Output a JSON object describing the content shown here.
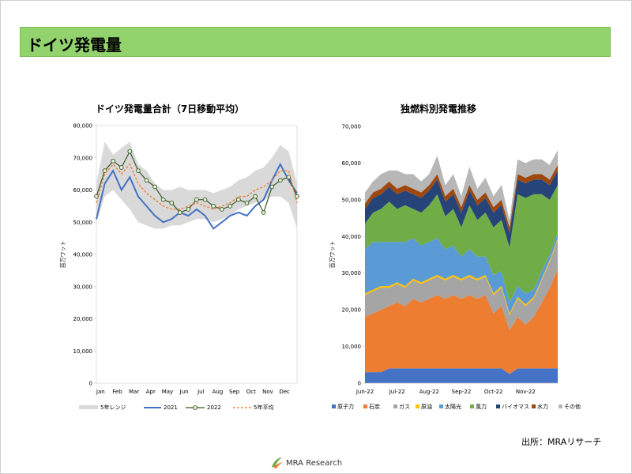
{
  "header": {
    "title": "ドイツ発電量"
  },
  "footer": {
    "source": "出所：MRAリサーチ",
    "logo_text": "MRA Research"
  },
  "colors": {
    "banner": "#92d36e",
    "range": "#d9d9d9",
    "y2021": "#4472c4",
    "y2022_line": "#385723",
    "y2022_marker": "#e2efda",
    "avg": "#ed7d31"
  },
  "chart_data": [
    {
      "type": "line",
      "title": "ドイツ発電量合計（7日移動平均）",
      "ylabel": "百万ワット",
      "ylim": [
        0,
        80000
      ],
      "yticks": [
        0,
        10000,
        20000,
        30000,
        40000,
        50000,
        60000,
        70000,
        80000
      ],
      "ytick_labels": [
        "0",
        "10,000",
        "20,000",
        "30,000",
        "40,000",
        "50,000",
        "60,000",
        "70,000",
        "80,000"
      ],
      "months": [
        "Jan",
        "Feb",
        "Mar",
        "Apr",
        "May",
        "Jun",
        "Jul",
        "Aug",
        "Sep",
        "Oct",
        "Nov",
        "Dec"
      ],
      "legend": [
        "5年レンジ",
        "2021",
        "2022",
        "5年平均"
      ],
      "legend_position": "bottom",
      "x": [
        0,
        0.5,
        1,
        1.5,
        2,
        2.5,
        3,
        3.5,
        4,
        4.5,
        5,
        5.5,
        6,
        6.5,
        7,
        7.5,
        8,
        8.5,
        9,
        9.5,
        10,
        10.5,
        11,
        11.5,
        12
      ],
      "series": [
        {
          "name": "5年レンジ",
          "kind": "band",
          "low": [
            50000,
            58000,
            60000,
            57000,
            54000,
            50000,
            49000,
            48000,
            48000,
            49000,
            49000,
            50000,
            51000,
            51000,
            50000,
            51000,
            52000,
            54000,
            55000,
            56000,
            57000,
            58000,
            58000,
            56000,
            48000
          ],
          "high": [
            62000,
            75000,
            71000,
            73000,
            75000,
            68000,
            66000,
            62000,
            60000,
            60000,
            61000,
            60000,
            60000,
            60000,
            59000,
            60000,
            61000,
            63000,
            64000,
            66000,
            67000,
            70000,
            74000,
            72000,
            62000
          ]
        },
        {
          "name": "2021",
          "values": [
            51000,
            62000,
            66000,
            60000,
            64000,
            58000,
            55000,
            52000,
            50000,
            51000,
            53000,
            52000,
            54000,
            52000,
            48000,
            50000,
            52000,
            53000,
            52000,
            55000,
            57000,
            63000,
            68000,
            63000,
            59000
          ]
        },
        {
          "name": "2022",
          "values": [
            58000,
            66000,
            69000,
            67000,
            72000,
            66000,
            63000,
            61000,
            57000,
            56000,
            53000,
            54000,
            57000,
            57000,
            55000,
            54000,
            55000,
            57000,
            56000,
            58000,
            53000,
            61000,
            63000,
            64000,
            58000
          ]
        },
        {
          "name": "5年平均",
          "values": [
            56000,
            65000,
            68000,
            65000,
            68000,
            62000,
            59000,
            57000,
            55000,
            54000,
            54000,
            55000,
            56000,
            55000,
            54000,
            55000,
            56000,
            58000,
            58000,
            60000,
            61000,
            63000,
            66000,
            66000,
            56000
          ]
        }
      ]
    },
    {
      "type": "area",
      "stacked": true,
      "title": "独燃料別発電推移",
      "ylabel": "百万ワット",
      "ylim": [
        0,
        70000
      ],
      "yticks": [
        0,
        10000,
        20000,
        30000,
        40000,
        50000,
        60000,
        70000
      ],
      "ytick_labels": [
        "0",
        "10,000",
        "20,000",
        "30,000",
        "40,000",
        "50,000",
        "60,000",
        "70,000"
      ],
      "categories": [
        "Jun-22",
        "Jul-22",
        "Aug-22",
        "Sep-22",
        "Oct-22",
        "Nov-22"
      ],
      "legend": [
        "原子力",
        "石炭",
        "ガス",
        "原油",
        "太陽光",
        "風力",
        "バイオマス",
        "水力",
        "その他"
      ],
      "legend_position": "bottom",
      "x": [
        0,
        0.25,
        0.5,
        0.75,
        1,
        1.25,
        1.5,
        1.75,
        2,
        2.25,
        2.5,
        2.75,
        3,
        3.25,
        3.5,
        3.75,
        4,
        4.25,
        4.5,
        4.75,
        5,
        5.25,
        5.5,
        5.75,
        6
      ],
      "series": [
        {
          "name": "原子力",
          "color": "#4472c4",
          "values": [
            3000,
            3000,
            3000,
            4000,
            4000,
            4000,
            4000,
            4000,
            4000,
            4000,
            4000,
            4000,
            4000,
            4000,
            4000,
            4000,
            4000,
            4000,
            2500,
            4000,
            4000,
            4000,
            4000,
            4000,
            4000
          ]
        },
        {
          "name": "石炭",
          "color": "#ed7d31",
          "values": [
            15000,
            16000,
            17000,
            17000,
            18000,
            17000,
            19000,
            18000,
            19000,
            20000,
            19000,
            20000,
            19000,
            20000,
            19000,
            20000,
            15000,
            17000,
            12000,
            14000,
            12000,
            14000,
            18000,
            22000,
            27000
          ]
        },
        {
          "name": "ガス",
          "color": "#a5a5a5",
          "values": [
            6000,
            6000,
            6000,
            5000,
            5000,
            5000,
            5000,
            5000,
            5000,
            5000,
            5000,
            5000,
            5000,
            5000,
            5000,
            5000,
            5000,
            5000,
            4000,
            5000,
            5000,
            5000,
            6000,
            7000,
            8000
          ]
        },
        {
          "name": "原油",
          "color": "#ffc000",
          "values": [
            500,
            500,
            500,
            500,
            500,
            500,
            500,
            500,
            500,
            500,
            500,
            500,
            500,
            500,
            500,
            500,
            500,
            500,
            500,
            500,
            500,
            500,
            500,
            500,
            500
          ]
        },
        {
          "name": "太陽光",
          "color": "#5b9bd5",
          "values": [
            12000,
            13000,
            12000,
            12000,
            11000,
            12000,
            11000,
            10000,
            10000,
            10000,
            8000,
            8000,
            6000,
            7000,
            6000,
            5000,
            5000,
            4000,
            3000,
            3000,
            3000,
            2000,
            2000,
            1500,
            1500
          ]
        },
        {
          "name": "風力",
          "color": "#70ad47",
          "values": [
            7000,
            8000,
            9000,
            11000,
            9000,
            10000,
            8000,
            9000,
            10000,
            12000,
            9000,
            10000,
            8000,
            12000,
            10000,
            12000,
            13000,
            14000,
            15000,
            25000,
            26000,
            26000,
            21000,
            15000,
            13000
          ]
        },
        {
          "name": "バイオマス",
          "color": "#264478",
          "values": [
            4000,
            4000,
            4000,
            4000,
            4000,
            4000,
            4000,
            4000,
            4000,
            4000,
            4000,
            4000,
            4000,
            4000,
            4000,
            4000,
            4000,
            4000,
            4000,
            4000,
            4000,
            4000,
            4000,
            4000,
            4000
          ]
        },
        {
          "name": "水力",
          "color": "#9e480e",
          "values": [
            1500,
            1500,
            1500,
            1500,
            1500,
            1500,
            1500,
            1500,
            1500,
            1500,
            1500,
            1500,
            1500,
            1500,
            1500,
            1500,
            1500,
            1500,
            1500,
            1500,
            1500,
            1500,
            1500,
            1500,
            1500
          ]
        },
        {
          "name": "その他",
          "color": "#b7b7b7",
          "values": [
            3000,
            3000,
            4000,
            3000,
            5000,
            3000,
            4000,
            3000,
            3000,
            5000,
            3000,
            4000,
            3000,
            5000,
            3000,
            4000,
            3000,
            4000,
            2000,
            4000,
            4000,
            4000,
            4000,
            4000,
            4000
          ]
        }
      ]
    }
  ]
}
